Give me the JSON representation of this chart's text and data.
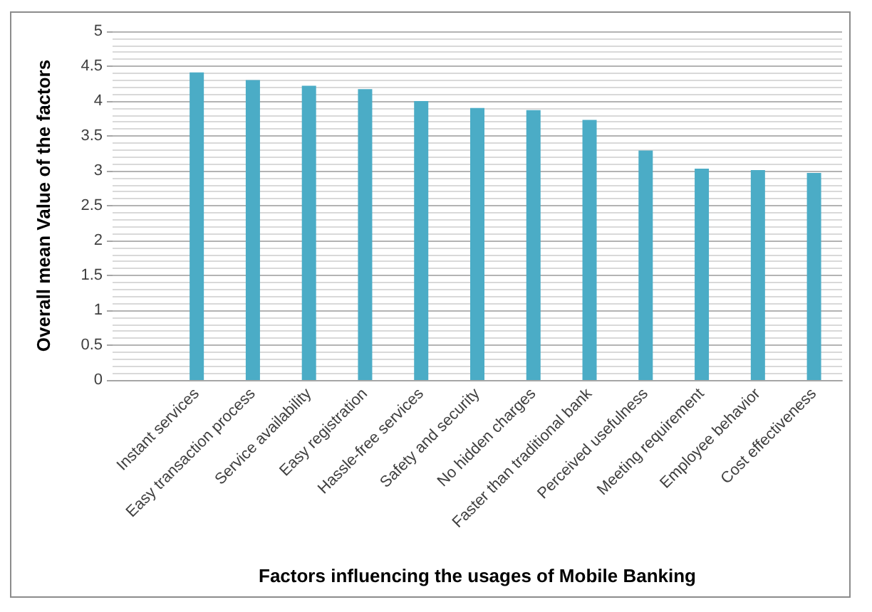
{
  "chart_data": {
    "type": "bar",
    "categories": [
      null,
      "Instant services",
      "Easy transaction process",
      "Service availability",
      "Easy registration",
      "Hassle-free services",
      "Safety and security",
      "No hidden charges",
      "Faster than traditional bank",
      "Perceived usefulness",
      "Meeting requirement",
      "Employee behavior",
      "Cost effectiveness"
    ],
    "values": [
      null,
      4.41,
      4.3,
      4.22,
      4.17,
      4.0,
      3.9,
      3.87,
      3.73,
      3.29,
      3.03,
      3.01,
      2.97
    ],
    "color": "#4bacc6",
    "xlabel": "Factors influencing the usages of Mobile Banking",
    "ylabel": "Overall mean Value of the factors",
    "ylim": [
      0,
      5
    ],
    "yticks": [
      0,
      0.5,
      1,
      1.5,
      2,
      2.5,
      3,
      3.5,
      4,
      4.5,
      5
    ],
    "grid": "y"
  }
}
